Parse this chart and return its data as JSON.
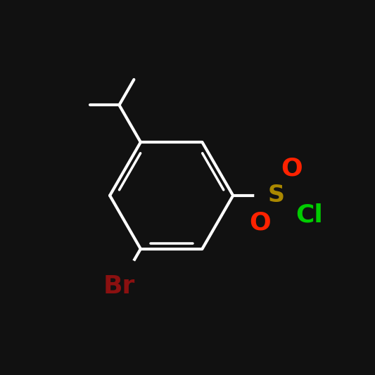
{
  "background_color": "#111111",
  "bond_color": "#ffffff",
  "bond_width": 3.0,
  "atoms": {
    "Br": {
      "color": "#8b1010",
      "fontsize": 26,
      "fontweight": "bold"
    },
    "S": {
      "color": "#aa8800",
      "fontsize": 24,
      "fontweight": "bold"
    },
    "O": {
      "color": "#ff2200",
      "fontsize": 26,
      "fontweight": "bold"
    },
    "Cl": {
      "color": "#00cc00",
      "fontsize": 26,
      "fontweight": "bold"
    }
  },
  "figsize": [
    5.33,
    5.33
  ],
  "dpi": 100,
  "xlim": [
    -3.2,
    3.8
  ],
  "ylim": [
    -3.2,
    3.5
  ]
}
